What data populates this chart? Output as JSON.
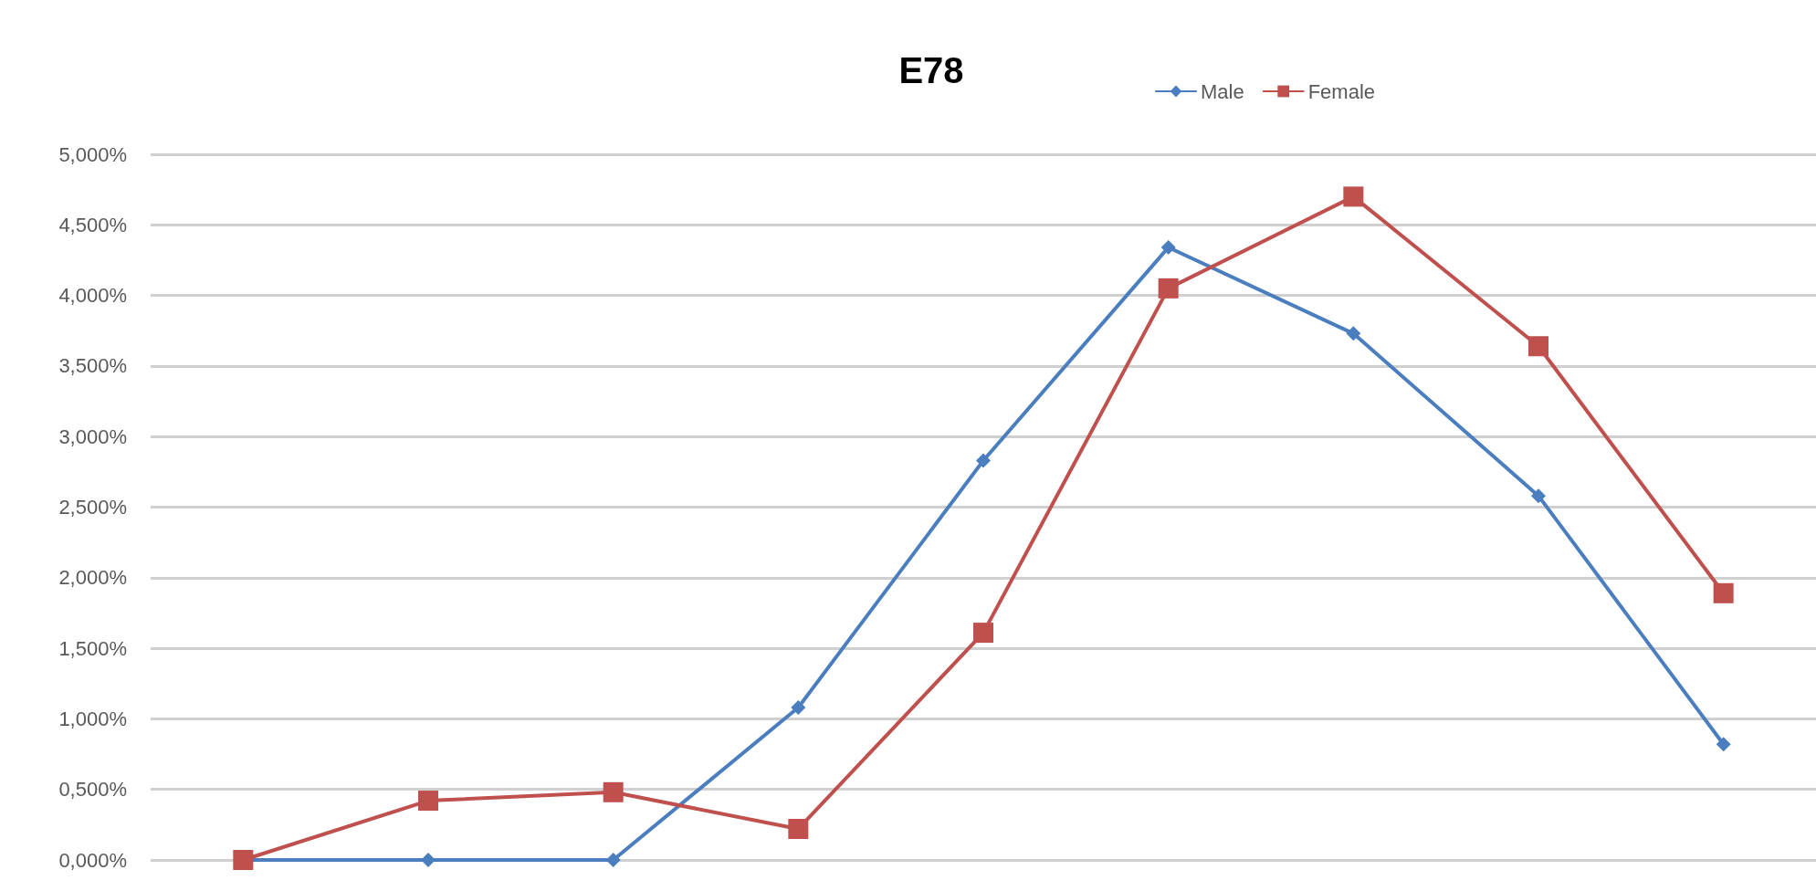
{
  "chart_data": {
    "type": "line",
    "title": "E78",
    "categories": [
      null,
      null,
      null,
      null,
      null,
      null,
      null,
      null,
      null
    ],
    "series": [
      {
        "name": "Male",
        "color": "#4a7ebf",
        "marker": "diamond",
        "values": [
          0,
          0,
          0,
          1.08,
          2.83,
          4.34,
          3.73,
          2.58,
          0.82
        ]
      },
      {
        "name": "Female",
        "color": "#c0504d",
        "marker": "square",
        "values": [
          0,
          0.42,
          0.48,
          0.22,
          1.61,
          4.05,
          4.7,
          3.64,
          1.89
        ]
      }
    ],
    "ylim": [
      0,
      5
    ],
    "yticks": [
      {
        "value": 0,
        "label": "0,000%"
      },
      {
        "value": 0.5,
        "label": "0,500%"
      },
      {
        "value": 1,
        "label": "1,000%"
      },
      {
        "value": 1.5,
        "label": "1,500%"
      },
      {
        "value": 2,
        "label": "2,000%"
      },
      {
        "value": 2.5,
        "label": "2,500%"
      },
      {
        "value": 3,
        "label": "3,000%"
      },
      {
        "value": 3.5,
        "label": "3,500%"
      },
      {
        "value": 4,
        "label": "4,000%"
      },
      {
        "value": 4.5,
        "label": "4,500%"
      },
      {
        "value": 5,
        "label": "5,000%"
      }
    ],
    "grid": "y",
    "legend": "top right",
    "line_style": "solid"
  }
}
